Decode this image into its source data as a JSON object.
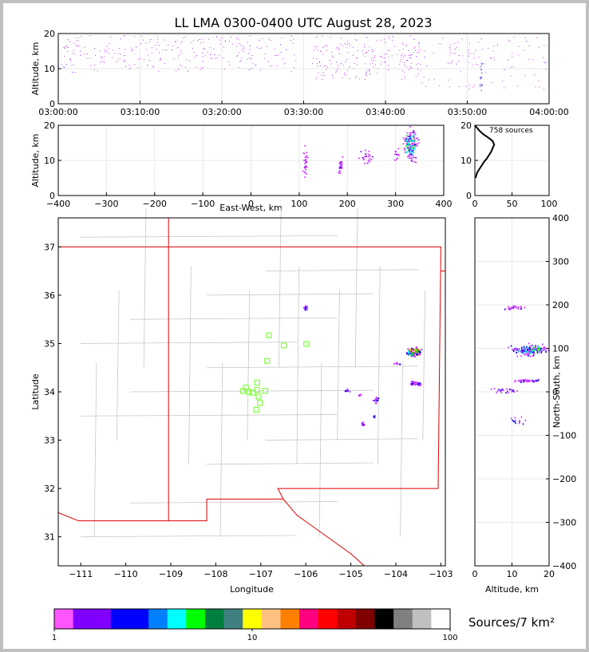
{
  "title": "LL LMA 0300-0400 UTC August 28, 2023",
  "chart_data": [
    {
      "id": "time_altitude",
      "type": "scatter",
      "ylabel": "Altitude, km",
      "xlim": [
        "03:00:00",
        "04:00:00"
      ],
      "ylim": [
        0,
        20
      ],
      "xticks": [
        "03:00:00",
        "03:10:00",
        "03:20:00",
        "03:30:00",
        "03:40:00",
        "03:50:00",
        "04:00:00"
      ],
      "yticks": [
        0,
        10,
        20
      ],
      "grid": true,
      "clusters": [
        {
          "t0": "03:00:00",
          "t1": "03:29:00",
          "alt0": 9,
          "alt1": 19.5,
          "n": 260
        },
        {
          "t0": "03:31:00",
          "t1": "03:44:00",
          "alt0": 7,
          "alt1": 19.5,
          "n": 200
        },
        {
          "t0": "03:44:00",
          "t1": "04:00:00",
          "alt0": 4,
          "alt1": 19,
          "n": 110
        },
        {
          "t0": "03:51:30",
          "t1": "03:51:50",
          "alt0": 3,
          "alt1": 12,
          "n": 20
        }
      ]
    },
    {
      "id": "ew_altitude",
      "type": "heatmap",
      "xlabel": "East-West, km",
      "ylabel": "Altitude, km",
      "xlim": [
        -400,
        400
      ],
      "ylim": [
        0,
        20
      ],
      "xticks": [
        -400,
        -300,
        -200,
        -100,
        0,
        100,
        200,
        300,
        400
      ],
      "yticks": [
        0,
        10,
        20
      ],
      "grid": true,
      "clusters": [
        {
          "x": 112,
          "alt": 9.5,
          "sx": 3,
          "salt": 2.5,
          "n": 30
        },
        {
          "x": 185,
          "alt": 8.5,
          "sx": 3,
          "salt": 1.5,
          "n": 25
        },
        {
          "x": 238,
          "alt": 11,
          "sx": 8,
          "salt": 1.8,
          "n": 25
        },
        {
          "x": 330,
          "alt": 14.5,
          "sx": 9,
          "salt": 3,
          "n": 150
        },
        {
          "x": 300,
          "alt": 12,
          "sx": 5,
          "salt": 1.5,
          "n": 12
        }
      ]
    },
    {
      "id": "altitude_histogram",
      "type": "line",
      "annotation": "758 sources",
      "xlim": [
        0,
        100
      ],
      "ylim": [
        0,
        20
      ],
      "xticks": [
        0,
        50,
        100
      ],
      "yticks": [
        0,
        10,
        20
      ],
      "grid": true,
      "profile": [
        [
          1,
          5
        ],
        [
          3,
          6.5
        ],
        [
          6,
          7.5
        ],
        [
          9,
          8.5
        ],
        [
          12,
          9.5
        ],
        [
          16,
          10.5
        ],
        [
          19,
          11.5
        ],
        [
          22,
          12.5
        ],
        [
          24,
          13.5
        ],
        [
          26,
          14.5
        ],
        [
          24,
          15.5
        ],
        [
          18,
          16.5
        ],
        [
          11,
          17.5
        ],
        [
          6,
          18.5
        ],
        [
          2,
          19.5
        ],
        [
          0,
          20
        ]
      ]
    },
    {
      "id": "plan_view",
      "type": "scatter",
      "xlabel": "Longitude",
      "ylabel": "Latitude",
      "xlim": [
        -111.5,
        -102.9
      ],
      "ylim": [
        30.4,
        37.6
      ],
      "xticks": [
        -111,
        -110,
        -109,
        -108,
        -107,
        -106,
        -105,
        -104,
        -103
      ],
      "yticks": [
        31,
        32,
        33,
        34,
        35,
        36,
        37
      ],
      "stations": [
        [
          -107.33,
          34.09
        ],
        [
          -107.4,
          34.02
        ],
        [
          -107.27,
          34.0
        ],
        [
          -107.18,
          33.98
        ],
        [
          -107.08,
          34.19
        ],
        [
          -107.08,
          34.04
        ],
        [
          -107.05,
          33.9
        ],
        [
          -107.02,
          33.77
        ],
        [
          -107.1,
          33.63
        ],
        [
          -106.9,
          34.02
        ],
        [
          -106.86,
          34.64
        ],
        [
          -106.82,
          35.17
        ],
        [
          -106.49,
          34.96
        ],
        [
          -105.99,
          34.99
        ]
      ],
      "clusters": [
        {
          "lon": -103.62,
          "lat": 34.84,
          "slon": 0.1,
          "slat": 0.06,
          "n": 150
        },
        {
          "lon": -103.6,
          "lat": 34.2,
          "slon": 0.06,
          "slat": 0.03,
          "n": 20
        },
        {
          "lon": -103.5,
          "lat": 34.15,
          "slon": 0.04,
          "slat": 0.03,
          "n": 10
        },
        {
          "lon": -106.02,
          "lat": 35.75,
          "slon": 0.03,
          "slat": 0.03,
          "n": 12
        },
        {
          "lon": -104.0,
          "lat": 34.6,
          "slon": 0.05,
          "slat": 0.02,
          "n": 6
        },
        {
          "lon": -105.1,
          "lat": 34.04,
          "slon": 0.04,
          "slat": 0.02,
          "n": 10
        },
        {
          "lon": -104.45,
          "lat": 33.85,
          "slon": 0.04,
          "slat": 0.04,
          "n": 14
        },
        {
          "lon": -104.75,
          "lat": 33.35,
          "slon": 0.03,
          "slat": 0.03,
          "n": 12
        },
        {
          "lon": -104.5,
          "lat": 33.5,
          "slon": 0.02,
          "slat": 0.02,
          "n": 4
        },
        {
          "lon": -104.8,
          "lat": 33.95,
          "slon": 0.03,
          "slat": 0.02,
          "n": 5
        }
      ]
    },
    {
      "id": "altitude_ns",
      "type": "heatmap",
      "xlabel": "Altitude, km",
      "ylabel": "North-South, km",
      "xlim": [
        0,
        20
      ],
      "ylim": [
        -400,
        400
      ],
      "xticks": [
        0,
        10,
        20
      ],
      "yticks": [
        -400,
        -300,
        -200,
        -100,
        0,
        100,
        200,
        300,
        400
      ],
      "grid": true,
      "clusters": [
        {
          "alt": 14.5,
          "ns": 98,
          "salt": 3,
          "sns": 8,
          "n": 170
        },
        {
          "alt": 14,
          "ns": 27,
          "salt": 2.5,
          "sns": 2,
          "n": 40
        },
        {
          "alt": 10,
          "ns": 195,
          "salt": 2.2,
          "sns": 3,
          "n": 30
        },
        {
          "alt": 9,
          "ns": 5,
          "salt": 2.5,
          "sns": 4,
          "n": 30
        },
        {
          "alt": 11.5,
          "ns": -65,
          "salt": 1.5,
          "sns": 5,
          "n": 14
        }
      ]
    }
  ],
  "colorbar": {
    "label": "Sources/7 km²",
    "tick_labels": [
      "1",
      "10",
      "100"
    ],
    "colors": [
      "#ff55ff",
      "#8000ff",
      "#8000ff",
      "#0000ff",
      "#0000ff",
      "#0080ff",
      "#00ffff",
      "#00ff00",
      "#008040",
      "#408080",
      "#ffff00",
      "#ffc080",
      "#ff8000",
      "#ff0080",
      "#ff0000",
      "#c00000",
      "#800000",
      "#000000",
      "#808080",
      "#c0c0c0",
      "#ffffff"
    ]
  },
  "colors": {
    "station": "#7fff3f",
    "state_border": "#dd0000",
    "county": "#c8c8c8",
    "grid": "#e8e8e8"
  }
}
